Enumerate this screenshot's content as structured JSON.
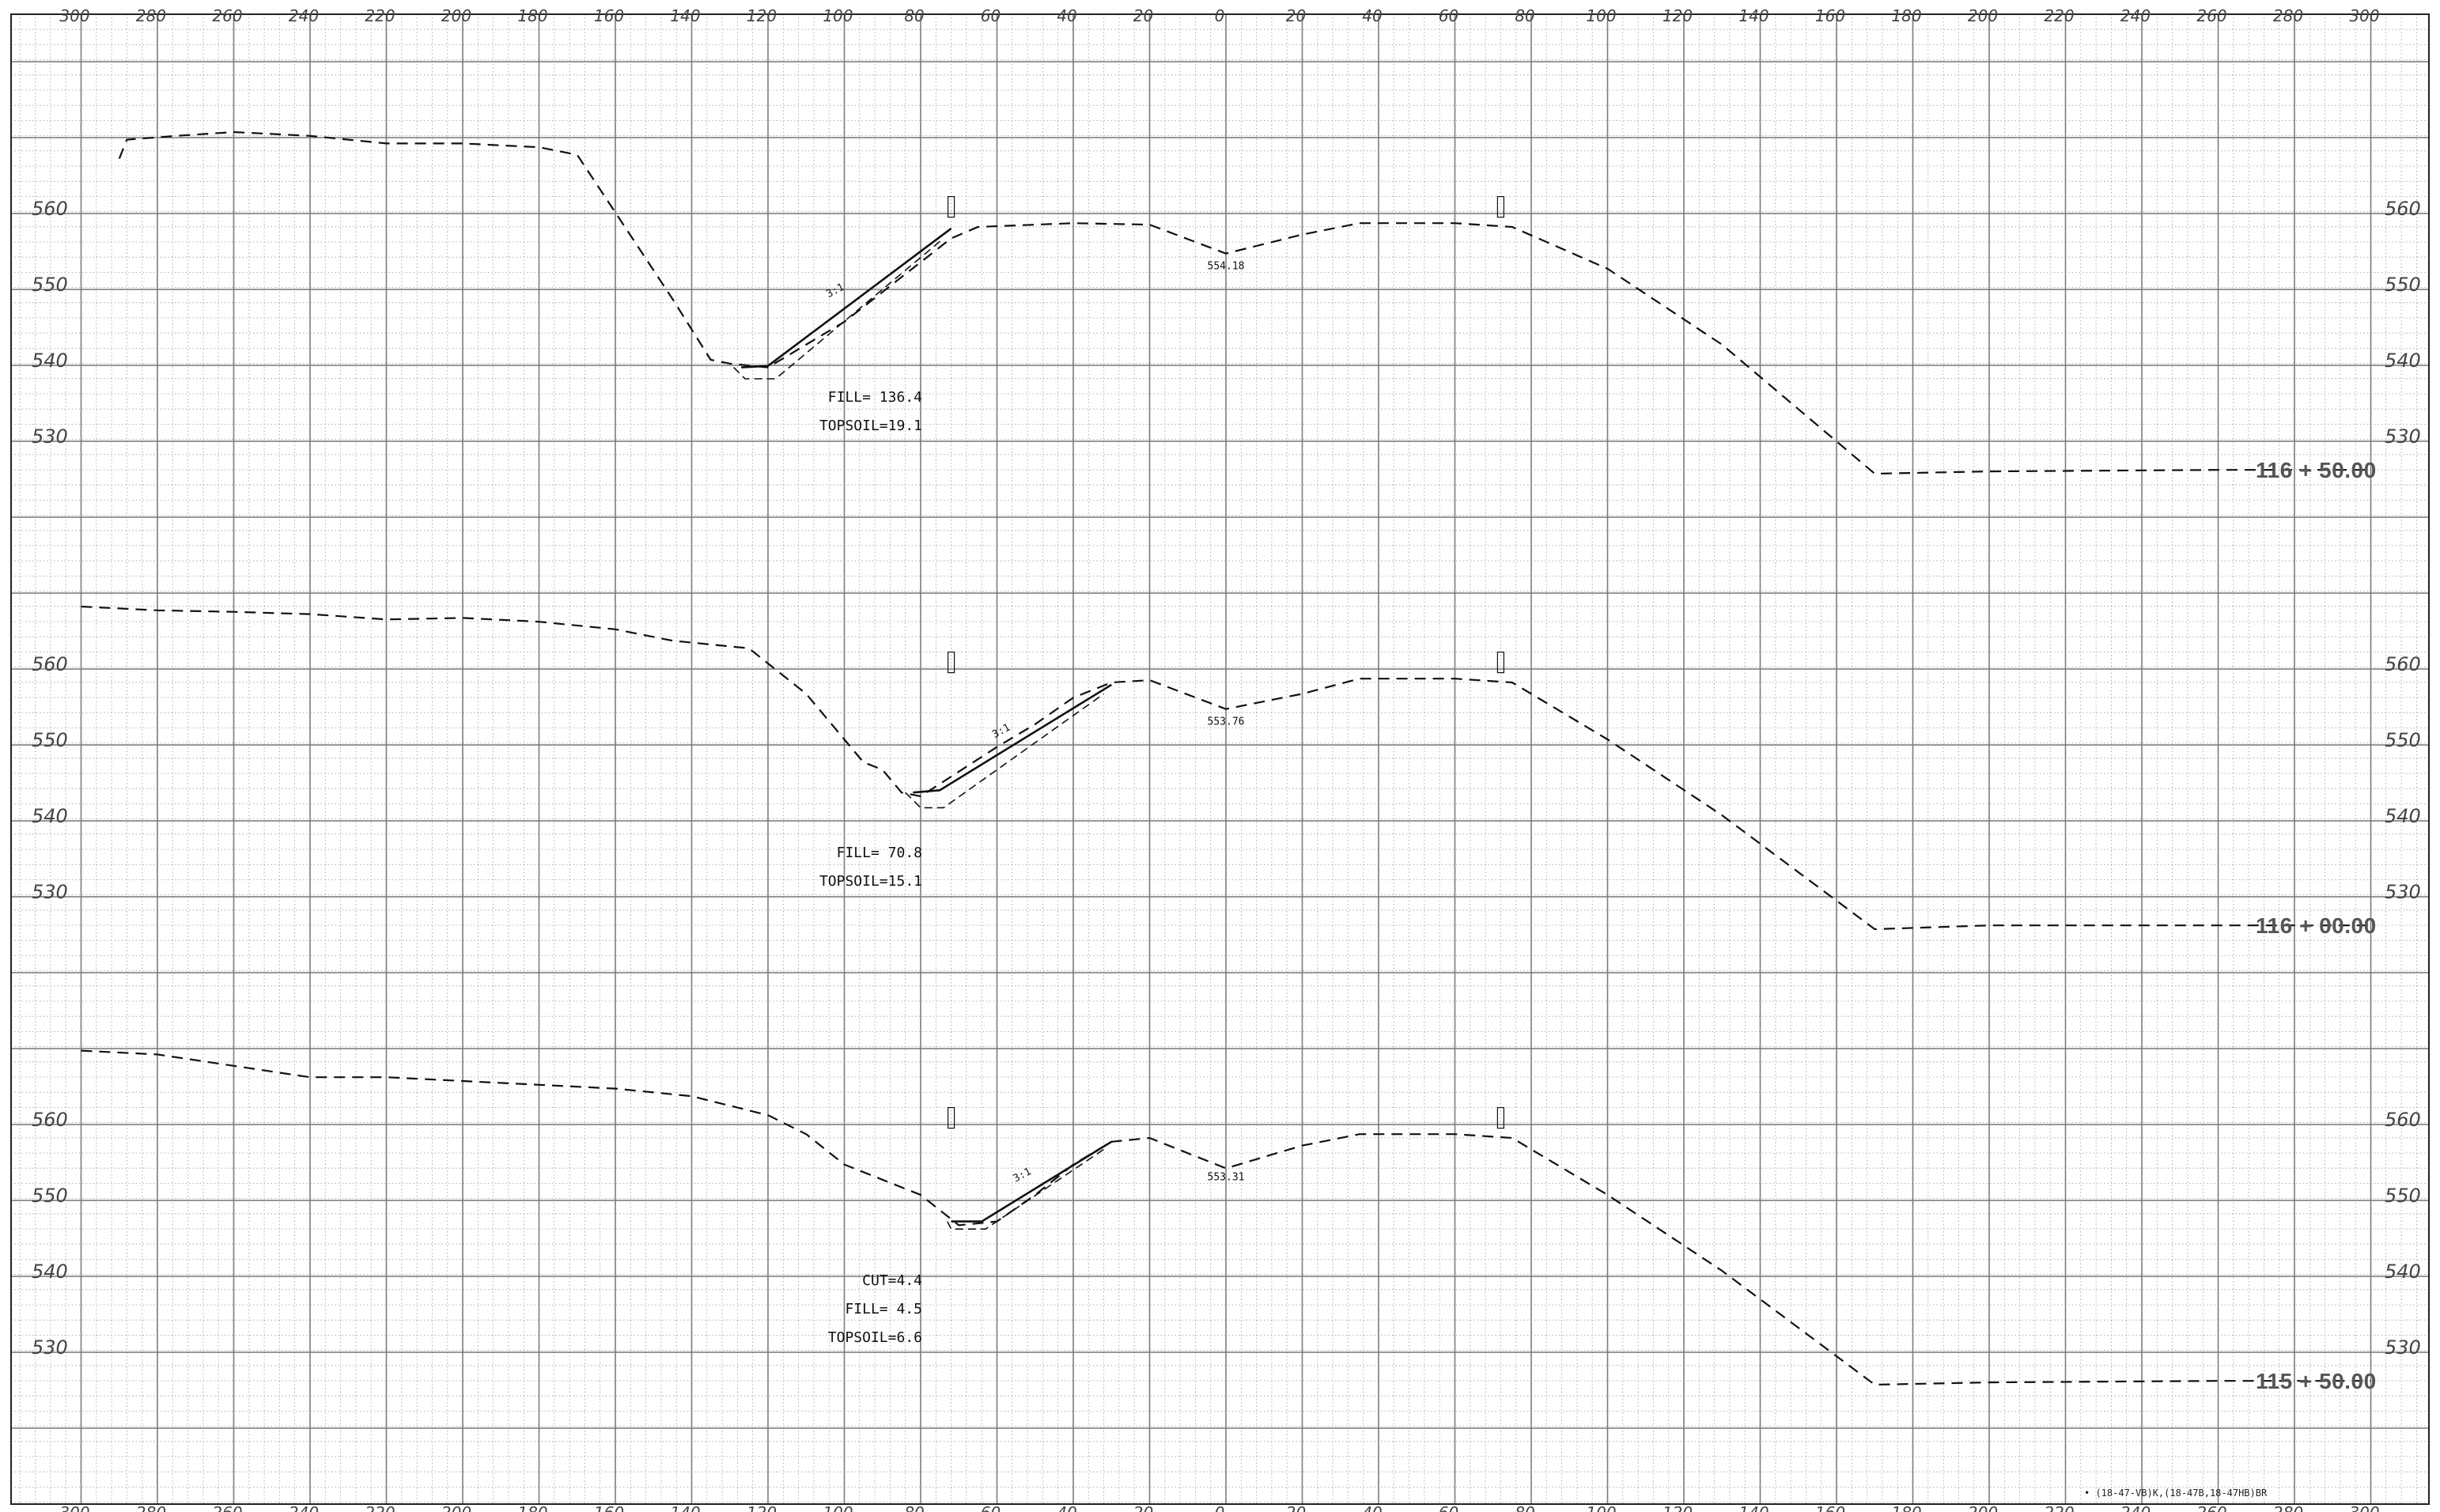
{
  "sheet": {
    "offset_labels": [
      "300",
      "280",
      "260",
      "240",
      "220",
      "200",
      "180",
      "160",
      "140",
      "120",
      "100",
      "80",
      "60",
      "40",
      "20",
      "0",
      "20",
      "40",
      "60",
      "80",
      "100",
      "120",
      "140",
      "160",
      "180",
      "200",
      "220",
      "240",
      "260",
      "280",
      "300"
    ],
    "footer_note": "• (18-47-VB)K,(18-47B,18-47HB)BR"
  },
  "sections": [
    {
      "station": "116 + 50.00",
      "elevation_labels": [
        "560",
        "550",
        "540",
        "530"
      ],
      "centerline_elev": "554.18",
      "slope_label": "3:1",
      "quantities": [
        "FILL= 136.4",
        "TOPSOIL=19.1"
      ],
      "ground_profile": [
        [
          -290,
          566.5
        ],
        [
          -288,
          569
        ],
        [
          -275,
          569.5
        ],
        [
          -260,
          570
        ],
        [
          -240,
          569.5
        ],
        [
          -220,
          568.5
        ],
        [
          -200,
          568.5
        ],
        [
          -180,
          568
        ],
        [
          -170,
          567
        ],
        [
          -145,
          548
        ],
        [
          -135,
          540
        ],
        [
          -130,
          539.5
        ],
        [
          -120,
          539
        ],
        [
          -100,
          545
        ],
        [
          -72,
          556
        ],
        [
          -65,
          557.5
        ],
        [
          -40,
          558
        ],
        [
          -20,
          557.8
        ],
        [
          0,
          554
        ],
        [
          20,
          556.5
        ],
        [
          35,
          558
        ],
        [
          60,
          558
        ],
        [
          75,
          557.5
        ],
        [
          100,
          552
        ],
        [
          130,
          542
        ],
        [
          170,
          525
        ],
        [
          200,
          525.3
        ],
        [
          260,
          525.5
        ],
        [
          300,
          525.5
        ]
      ],
      "design_profile": [
        [
          -127,
          539
        ],
        [
          -120,
          539.2
        ],
        [
          -72,
          557.3
        ]
      ],
      "subgrade_profile": [
        [
          -129,
          539
        ],
        [
          -126,
          537.5
        ],
        [
          -118,
          537.5
        ],
        [
          -74,
          556
        ]
      ]
    },
    {
      "station": "116 + 00.00",
      "elevation_labels": [
        "560",
        "550",
        "540",
        "530"
      ],
      "centerline_elev": "553.76",
      "slope_label": "3:1",
      "quantities": [
        "FILL= 70.8",
        "TOPSOIL=15.1"
      ],
      "ground_profile": [
        [
          -300,
          567.5
        ],
        [
          -280,
          567
        ],
        [
          -260,
          566.8
        ],
        [
          -240,
          566.5
        ],
        [
          -220,
          565.8
        ],
        [
          -200,
          566
        ],
        [
          -180,
          565.5
        ],
        [
          -160,
          564.5
        ],
        [
          -145,
          563
        ],
        [
          -125,
          562
        ],
        [
          -110,
          556
        ],
        [
          -100,
          550
        ],
        [
          -95,
          547
        ],
        [
          -90,
          546
        ],
        [
          -85,
          543
        ],
        [
          -80,
          542.5
        ],
        [
          -60,
          549
        ],
        [
          -50,
          552
        ],
        [
          -40,
          555.5
        ],
        [
          -30,
          557.5
        ],
        [
          -20,
          557.8
        ],
        [
          0,
          554
        ],
        [
          20,
          556
        ],
        [
          35,
          558
        ],
        [
          60,
          558
        ],
        [
          75,
          557.5
        ],
        [
          100,
          550
        ],
        [
          130,
          540
        ],
        [
          170,
          525
        ],
        [
          200,
          525.5
        ],
        [
          260,
          525.5
        ],
        [
          300,
          525.5
        ]
      ],
      "design_profile": [
        [
          -82,
          543
        ],
        [
          -75,
          543.3
        ],
        [
          -30,
          557.2
        ]
      ],
      "subgrade_profile": [
        [
          -84,
          543
        ],
        [
          -80,
          541
        ],
        [
          -74,
          541
        ],
        [
          -32,
          556
        ]
      ]
    },
    {
      "station": "115 + 50.00",
      "elevation_labels": [
        "560",
        "550",
        "540",
        "530"
      ],
      "centerline_elev": "553.31",
      "slope_label": "3:1",
      "quantities": [
        "CUT=4.4",
        "FILL= 4.5",
        "TOPSOIL=6.6"
      ],
      "ground_profile": [
        [
          -300,
          569
        ],
        [
          -280,
          568.5
        ],
        [
          -260,
          567
        ],
        [
          -240,
          565.5
        ],
        [
          -220,
          565.5
        ],
        [
          -200,
          565
        ],
        [
          -180,
          564.5
        ],
        [
          -160,
          564
        ],
        [
          -150,
          563.5
        ],
        [
          -140,
          563
        ],
        [
          -120,
          560.5
        ],
        [
          -110,
          558
        ],
        [
          -100,
          554
        ],
        [
          -90,
          552
        ],
        [
          -80,
          550
        ],
        [
          -70,
          546
        ],
        [
          -60,
          546.5
        ],
        [
          -50,
          550
        ],
        [
          -40,
          554
        ],
        [
          -30,
          557
        ],
        [
          -20,
          557.5
        ],
        [
          0,
          553.5
        ],
        [
          20,
          556.5
        ],
        [
          35,
          558
        ],
        [
          60,
          558
        ],
        [
          75,
          557.5
        ],
        [
          100,
          550
        ],
        [
          130,
          540
        ],
        [
          170,
          525
        ],
        [
          200,
          525.3
        ],
        [
          260,
          525.5
        ],
        [
          300,
          525.5
        ]
      ],
      "design_profile": [
        [
          -72,
          546.5
        ],
        [
          -64,
          546.5
        ],
        [
          -30,
          557
        ]
      ],
      "subgrade_profile": [
        [
          -73,
          546.5
        ],
        [
          -72,
          545.5
        ],
        [
          -63,
          545.5
        ],
        [
          -32,
          556
        ]
      ]
    }
  ]
}
